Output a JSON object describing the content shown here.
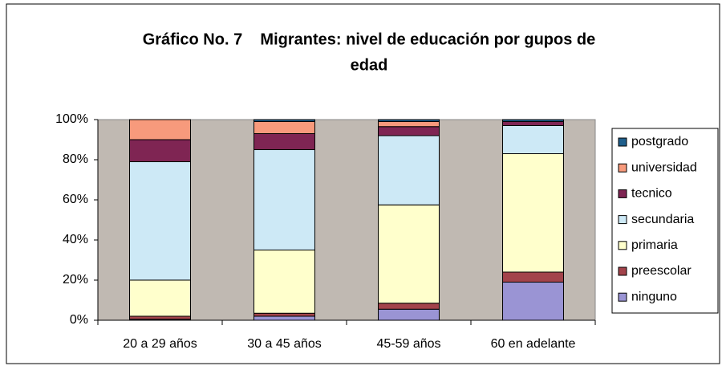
{
  "chart_data": {
    "type": "bar",
    "stacked": true,
    "title": [
      "Gráfico No. 7    Migrantes: nivel de educación por gupos de",
      "edad"
    ],
    "categories": [
      "20 a 29 años",
      "30 a 45 años",
      "45-59 años",
      "60 en adelante"
    ],
    "series": [
      {
        "name": "ninguno",
        "color": "#9a94d4",
        "values": [
          0.5,
          2,
          5.5,
          19
        ]
      },
      {
        "name": "preescolar",
        "color": "#a3434b",
        "values": [
          1.5,
          1.5,
          3,
          5
        ]
      },
      {
        "name": "primaria",
        "color": "#ffffcc",
        "values": [
          18,
          31.5,
          49,
          59
        ]
      },
      {
        "name": "secundaria",
        "color": "#cde9f6",
        "values": [
          59,
          50,
          34.5,
          14
        ]
      },
      {
        "name": "tecnico",
        "color": "#7f2553",
        "values": [
          11,
          8,
          4.5,
          2
        ]
      },
      {
        "name": "universidad",
        "color": "#f79a7c",
        "values": [
          10,
          6,
          2.5,
          0
        ]
      },
      {
        "name": "postgrado",
        "color": "#1f5f8c",
        "values": [
          0,
          1,
          1,
          1
        ]
      }
    ],
    "ylim": [
      0,
      100
    ],
    "yticks": [
      {
        "value": 0,
        "label": "0%"
      },
      {
        "value": 20,
        "label": "20%"
      },
      {
        "value": 40,
        "label": "40%"
      },
      {
        "value": 60,
        "label": "60%"
      },
      {
        "value": 80,
        "label": "80%"
      },
      {
        "value": 100,
        "label": "100%"
      }
    ],
    "plot_background": "#c0b9b2",
    "legend": "right"
  }
}
